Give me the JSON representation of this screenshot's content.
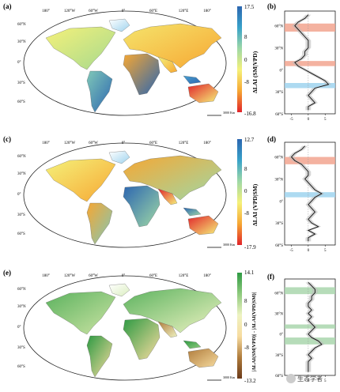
{
  "panels": {
    "a": {
      "letter": "(a)",
      "cbar_max": "17.5",
      "cbar_ticks": [
        "8",
        "0",
        "-8"
      ],
      "cbar_min": "-16.8",
      "cbar_title": "ΔLAI (SM|VPD)",
      "scale": "3000 Km"
    },
    "b": {
      "letter": "(b)"
    },
    "c": {
      "letter": "(c)",
      "cbar_max": "12.7",
      "cbar_ticks": [
        "8",
        "0",
        "-8"
      ],
      "cbar_min": "-17.9",
      "cbar_title": "ΔLAI (VPD|SM)",
      "scale": "3000 Km"
    },
    "d": {
      "letter": "(d)"
    },
    "e": {
      "letter": "(e)",
      "cbar_max": "14.1",
      "cbar_ticks": [
        "8",
        "0",
        "-8"
      ],
      "cbar_min": "-13.2",
      "cbar_title": "|ΔLAI(SM|VPD)| - |ΔLAI(VPD|SM)|",
      "scale": "3000 Km"
    },
    "f": {
      "letter": "(f)"
    }
  },
  "map_lon_labels": [
    "180°",
    "120°W",
    "60°W",
    "0°",
    "60°E",
    "120°E",
    "180°"
  ],
  "map_lat_labels": [
    "60°N",
    "30°N",
    "0°",
    "30°S",
    "60°S"
  ],
  "profile_lat_labels": [
    "60°N",
    "30°N",
    "0°",
    "30°S",
    "60°S"
  ],
  "profile_x_ticks_b": [
    "-5",
    "0",
    "5"
  ],
  "profile_x_ticks_d": [
    "-5",
    "0",
    "5"
  ],
  "profile_x_ticks_f": [
    "-5",
    "0",
    "5"
  ],
  "colors": {
    "dry": "#e1242a",
    "neutral": "#f5f17a",
    "wet": "#2c66b0",
    "green": "#2e9a43",
    "band_red": "#f2a58f",
    "band_blue": "#9fd3ee",
    "band_green": "#a9d6ad"
  },
  "watermark": "生态学者",
  "chart_data": [
    {
      "type": "line",
      "panel": "b",
      "xlabel": "",
      "ylabel": "",
      "x_ticks": [
        -5,
        0,
        5
      ],
      "xlim": [
        -7,
        8
      ],
      "y_lat": [
        75,
        70,
        65,
        60,
        55,
        50,
        45,
        40,
        35,
        30,
        25,
        20,
        15,
        10,
        5,
        0,
        -5,
        -10,
        -15,
        -20,
        -25,
        -30,
        -35,
        -40,
        -45,
        -50,
        -55
      ],
      "values": [
        0,
        -1,
        -3,
        -4,
        -3,
        -2,
        -1,
        0,
        0,
        0,
        -1,
        -1,
        -2,
        -4,
        -3,
        -1,
        1,
        3,
        5,
        6,
        2,
        1,
        0,
        1,
        2,
        0,
        0
      ],
      "bands": [
        {
          "lat": [
            52,
            63
          ],
          "color": "red"
        },
        {
          "lat": [
            5,
            12
          ],
          "color": "red"
        },
        {
          "lat": [
            -18,
            -25
          ],
          "color": "blue"
        }
      ]
    },
    {
      "type": "line",
      "panel": "d",
      "xlabel": "",
      "ylabel": "",
      "x_ticks": [
        -5,
        0,
        5
      ],
      "xlim": [
        -7,
        8
      ],
      "y_lat": [
        75,
        70,
        65,
        60,
        55,
        50,
        45,
        40,
        35,
        30,
        25,
        20,
        15,
        10,
        5,
        0,
        -5,
        -10,
        -15,
        -20,
        -25,
        -30,
        -35,
        -40,
        -45,
        -50,
        -55
      ],
      "values": [
        -1,
        -2,
        -4,
        -5,
        -4,
        -2,
        -1,
        0,
        0,
        -1,
        0,
        1,
        2,
        4,
        2,
        1,
        0,
        1,
        2,
        1,
        0,
        1,
        3,
        0,
        2,
        0,
        0
      ],
      "bands": [
        {
          "lat": [
            50,
            60
          ],
          "color": "red"
        },
        {
          "lat": [
            5,
            12
          ],
          "color": "blue"
        }
      ]
    },
    {
      "type": "line",
      "panel": "f",
      "xlabel": "",
      "ylabel": "",
      "x_ticks": [
        -5,
        0,
        5
      ],
      "xlim": [
        -7,
        8
      ],
      "y_lat": [
        75,
        70,
        65,
        60,
        55,
        50,
        45,
        40,
        35,
        30,
        25,
        20,
        15,
        10,
        5,
        0,
        -5,
        -10,
        -15,
        -20,
        -25,
        -30,
        -35,
        -40,
        -45,
        -50,
        -55
      ],
      "values": [
        0,
        1,
        2,
        2,
        1,
        1,
        0,
        0,
        1,
        0,
        1,
        0,
        1,
        2,
        1,
        0,
        1,
        3,
        4,
        2,
        1,
        0,
        1,
        0,
        0,
        0,
        0
      ],
      "bands": [
        {
          "lat": [
            58,
            68
          ],
          "color": "green"
        },
        {
          "lat": [
            8,
            14
          ],
          "color": "green"
        },
        {
          "lat": [
            -5,
            -15
          ],
          "color": "green"
        }
      ]
    }
  ]
}
